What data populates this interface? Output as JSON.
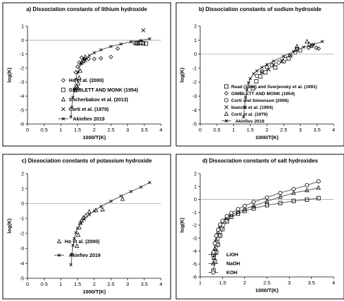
{
  "chart_data": [
    {
      "type": "scatter",
      "title": "a) Dissociation constants of lithium hydroxide",
      "xlabel": "1000/T(K)",
      "ylabel": "log(K)",
      "xlim": [
        0,
        4
      ],
      "ylim": [
        -6,
        1
      ],
      "xticks": [
        "0",
        "0.5",
        "1",
        "1.5",
        "2",
        "2.5",
        "3",
        "3.5",
        "4"
      ],
      "yticks": [
        "1",
        "0",
        "-1",
        "-2",
        "-3",
        "-4",
        "-5",
        "-6"
      ],
      "grid": false,
      "legend_position": "bottom-right",
      "series": [
        {
          "name": "Ho et al. (2000)",
          "marker": "diamond",
          "x": [
            1.45,
            1.5,
            1.55,
            1.62,
            1.7,
            1.83,
            2.0,
            2.2,
            2.5,
            2.7
          ],
          "y": [
            -2.3,
            -1.9,
            -1.6,
            -1.25,
            -1.35,
            -1.35,
            -1.35,
            -1.3,
            -1.2,
            -0.6
          ]
        },
        {
          "name": "GIMBLETT AND MONK (1954)",
          "marker": "square",
          "x": [
            3.23,
            3.27,
            3.3,
            3.35,
            3.4,
            3.46,
            3.55
          ],
          "y": [
            -0.2,
            -0.22,
            -0.22,
            -0.2,
            -0.18,
            -0.22,
            -0.25
          ]
        },
        {
          "name": "Shcherbakov et al. (2013)",
          "marker": "triangle",
          "x": [
            1.43,
            1.47,
            1.5,
            1.52,
            1.55,
            1.58,
            1.62,
            1.67,
            1.73
          ],
          "y": [
            -3.6,
            -3.3,
            -3.4,
            -3.1,
            -2.7,
            -2.2,
            -1.6,
            -1.5,
            -1.2
          ]
        },
        {
          "name": "Corti et al. (1979)",
          "marker": "x",
          "x": [
            1.73,
            3.47
          ],
          "y": [
            -1.45,
            0.7
          ]
        },
        {
          "name": "Akinfiev 2019",
          "marker": "line-x",
          "x": [
            1.3,
            1.33,
            1.36,
            1.4,
            1.45,
            1.5,
            1.6,
            1.7,
            1.85,
            2.0,
            2.2,
            2.5,
            2.8,
            3.1,
            3.4,
            3.66
          ],
          "y": [
            -5.5,
            -4.8,
            -4.1,
            -3.5,
            -2.8,
            -2.3,
            -1.7,
            -1.35,
            -1.1,
            -0.9,
            -0.7,
            -0.45,
            -0.28,
            -0.12,
            -0.02,
            0.1
          ]
        }
      ]
    },
    {
      "type": "scatter",
      "title": "b) Dissociation constants of sodium hydroxide",
      "xlabel": "1000/T(K)",
      "ylabel": "log(K)",
      "xlim": [
        0,
        4
      ],
      "ylim": [
        -5,
        2
      ],
      "xticks": [
        "0",
        "0.5",
        "1",
        "1.5",
        "2",
        "2.5",
        "3",
        "3.5",
        "4"
      ],
      "yticks": [
        "2",
        "1",
        "0",
        "-1",
        "-2",
        "-3",
        "-4",
        "-5"
      ],
      "grid": false,
      "legend_position": "bottom-right",
      "series": [
        {
          "name": "Read (1982) and Sverjeosky et al. (1991)",
          "marker": "square",
          "x": [
            1.58,
            1.68,
            1.8,
            1.95,
            2.25,
            2.5,
            2.65,
            2.9
          ],
          "y": [
            -2.45,
            -1.95,
            -1.6,
            -1.3,
            -0.95,
            -0.5,
            -0.3,
            0.35
          ]
        },
        {
          "name": "GIMBLETT AND MONK (1954)",
          "marker": "diamond",
          "x": [
            3.25,
            3.35,
            3.48,
            3.55
          ],
          "y": [
            0.45,
            0.6,
            0.45,
            0.4
          ]
        },
        {
          "name": "Corti and Simonson (2006)",
          "marker": "circle",
          "x": [
            1.7,
            1.85,
            2.0,
            2.15,
            2.35,
            2.55,
            2.7,
            2.85,
            3.0
          ],
          "y": [
            -1.55,
            -1.25,
            -0.95,
            -0.8,
            -0.6,
            -0.35,
            -0.1,
            0.1,
            0.25
          ]
        },
        {
          "name": "bianchi et al. (1994)",
          "marker": "x",
          "x": [
            1.85,
            2.05,
            2.2,
            2.45,
            2.7,
            2.9
          ],
          "y": [
            -1.3,
            -1.1,
            -0.75,
            -0.5,
            -0.1,
            0.3
          ]
        },
        {
          "name": "Corti et al. (1979)",
          "marker": "triangle",
          "x": [
            2.9,
            3.2,
            3.27,
            3.33
          ],
          "y": [
            0.55,
            0.9,
            0.7,
            0.6
          ]
        },
        {
          "name": "Akinfiev 2019",
          "marker": "line-x",
          "x": [
            1.3,
            1.33,
            1.36,
            1.4,
            1.45,
            1.5,
            1.6,
            1.7,
            1.85,
            2.0,
            2.2,
            2.5,
            2.8,
            3.1,
            3.4,
            3.66
          ],
          "y": [
            -4.5,
            -3.8,
            -3.1,
            -2.55,
            -2.05,
            -1.75,
            -1.4,
            -1.2,
            -0.95,
            -0.75,
            -0.5,
            -0.15,
            0.2,
            0.5,
            0.7,
            0.9
          ]
        }
      ]
    },
    {
      "type": "scatter",
      "title": "c) Dissociation constants of potassium hydroxide",
      "xlabel": "1000/T(K)",
      "ylabel": "log(K)",
      "xlim": [
        0,
        4
      ],
      "ylim": [
        -5,
        2
      ],
      "xticks": [
        "0",
        "0.5",
        "1",
        "1.5",
        "2",
        "2.5",
        "3",
        "3.5",
        "4"
      ],
      "yticks": [
        "2",
        "1",
        "0",
        "-1",
        "-2",
        "-3",
        "-4",
        "-5"
      ],
      "grid": false,
      "legend_position": "bottom-right",
      "series": [
        {
          "name": "Ho et al. (2000)",
          "marker": "triangle",
          "x": [
            1.48,
            1.52,
            1.55,
            1.58,
            1.62,
            1.67,
            1.75,
            1.85,
            2.05,
            2.25,
            2.85
          ],
          "y": [
            -2.85,
            -2.1,
            -1.6,
            -1.3,
            -1.15,
            -0.95,
            -0.8,
            -0.55,
            -0.45,
            -0.4,
            0.3
          ]
        },
        {
          "name": "Akinfiev 2019",
          "marker": "line-x",
          "x": [
            1.3,
            1.33,
            1.36,
            1.4,
            1.45,
            1.5,
            1.6,
            1.7,
            1.85,
            2.0,
            2.2,
            2.5,
            2.8,
            3.1,
            3.4,
            3.66
          ],
          "y": [
            -4.1,
            -3.4,
            -2.8,
            -2.35,
            -1.95,
            -1.65,
            -1.3,
            -1.05,
            -0.75,
            -0.5,
            -0.2,
            0.15,
            0.5,
            0.8,
            1.1,
            1.4
          ]
        }
      ]
    },
    {
      "type": "line",
      "title": "d) Dissociation constants of salt hydroxides",
      "xlabel": "1000/T(K)",
      "ylabel": "log(K)",
      "xlim": [
        1,
        4
      ],
      "ylim": [
        -6,
        2
      ],
      "xticks": [
        "1",
        "1.5",
        "2",
        "2.5",
        "3",
        "3.5",
        "4"
      ],
      "yticks": [
        "2",
        "1",
        "0",
        "-1",
        "-2",
        "-3",
        "-4",
        "-5",
        "-6"
      ],
      "grid": false,
      "legend_position": "bottom-left",
      "series": [
        {
          "name": "LiOH",
          "marker": "square",
          "x": [
            1.3,
            1.33,
            1.36,
            1.4,
            1.45,
            1.5,
            1.6,
            1.7,
            1.85,
            2.0,
            2.2,
            2.5,
            2.8,
            3.1,
            3.4,
            3.66
          ],
          "y": [
            -5.5,
            -4.8,
            -4.1,
            -3.5,
            -2.8,
            -2.3,
            -1.7,
            -1.35,
            -1.1,
            -0.9,
            -0.7,
            -0.45,
            -0.28,
            -0.12,
            -0.02,
            0.1
          ]
        },
        {
          "name": "NaOH",
          "marker": "tri",
          "x": [
            1.3,
            1.33,
            1.36,
            1.4,
            1.45,
            1.5,
            1.6,
            1.7,
            1.85,
            2.0,
            2.2,
            2.5,
            2.8,
            3.1,
            3.4,
            3.66
          ],
          "y": [
            -4.5,
            -3.8,
            -3.1,
            -2.55,
            -2.05,
            -1.75,
            -1.4,
            -1.2,
            -0.95,
            -0.75,
            -0.5,
            -0.15,
            0.2,
            0.5,
            0.7,
            0.9
          ]
        },
        {
          "name": "KOH",
          "marker": "circle",
          "x": [
            1.3,
            1.33,
            1.36,
            1.4,
            1.45,
            1.5,
            1.6,
            1.7,
            1.85,
            2.0,
            2.2,
            2.5,
            2.8,
            3.1,
            3.4,
            3.66
          ],
          "y": [
            -4.1,
            -3.4,
            -2.8,
            -2.35,
            -1.95,
            -1.65,
            -1.3,
            -1.05,
            -0.75,
            -0.5,
            -0.2,
            0.15,
            0.5,
            0.8,
            1.1,
            1.4
          ]
        }
      ]
    }
  ]
}
